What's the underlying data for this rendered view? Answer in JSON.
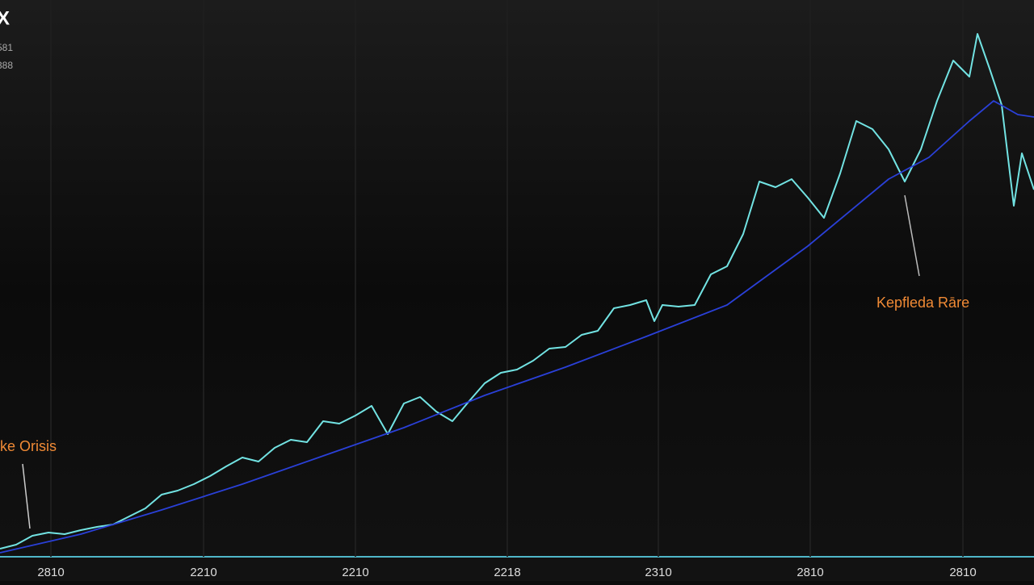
{
  "chart_data": {
    "type": "line",
    "title": "X",
    "subtitle": [
      "581",
      "388"
    ],
    "xlim": [
      0,
      1280
    ],
    "ylim": [
      0,
      720
    ],
    "xticks": [
      {
        "value": 63,
        "label": "2810"
      },
      {
        "value": 252,
        "label": "2210"
      },
      {
        "value": 440,
        "label": "2210"
      },
      {
        "value": 628,
        "label": "2218"
      },
      {
        "value": 815,
        "label": "2310"
      },
      {
        "value": 1003,
        "label": "2810"
      },
      {
        "value": 1192,
        "label": "2810"
      }
    ],
    "grid": true,
    "series": [
      {
        "color": "#72e3e3",
        "x": [
          0,
          20,
          40,
          60,
          80,
          100,
          120,
          140,
          160,
          180,
          200,
          220,
          240,
          260,
          280,
          300,
          320,
          340,
          360,
          380,
          400,
          420,
          440,
          460,
          480,
          500,
          520,
          540,
          560,
          580,
          600,
          620,
          640,
          660,
          680,
          700,
          720,
          740,
          760,
          780,
          800,
          810,
          820,
          840,
          860,
          880,
          900,
          920,
          940,
          960,
          980,
          1000,
          1020,
          1040,
          1060,
          1080,
          1100,
          1120,
          1140,
          1160,
          1180,
          1200,
          1210,
          1225,
          1240,
          1255,
          1265,
          1280
        ],
        "values": [
          40,
          45,
          56,
          60,
          58,
          63,
          67,
          70,
          80,
          90,
          107,
          112,
          120,
          130,
          142,
          153,
          148,
          165,
          175,
          172,
          198,
          195,
          205,
          217,
          182,
          220,
          228,
          210,
          198,
          222,
          245,
          258,
          262,
          273,
          288,
          290,
          305,
          310,
          338,
          342,
          348,
          322,
          342,
          340,
          342,
          380,
          390,
          430,
          495,
          488,
          498,
          475,
          450,
          505,
          570,
          560,
          535,
          495,
          535,
          595,
          645,
          625,
          678,
          635,
          590,
          465,
          530,
          485
        ]
      },
      {
        "color": "#2a40d8",
        "x": [
          0,
          100,
          200,
          300,
          400,
          500,
          600,
          700,
          800,
          900,
          1000,
          1100,
          1150,
          1200,
          1230,
          1260,
          1280
        ],
        "values": [
          35,
          58,
          88,
          120,
          155,
          190,
          230,
          265,
          303,
          342,
          415,
          498,
          525,
          570,
          595,
          578,
          575
        ]
      }
    ],
    "annotations": [
      {
        "text": "ke Orisis",
        "x": 0,
        "y": 172
      },
      {
        "text": "Kepfleda Rāre",
        "x": 1085,
        "y": 350
      }
    ]
  }
}
